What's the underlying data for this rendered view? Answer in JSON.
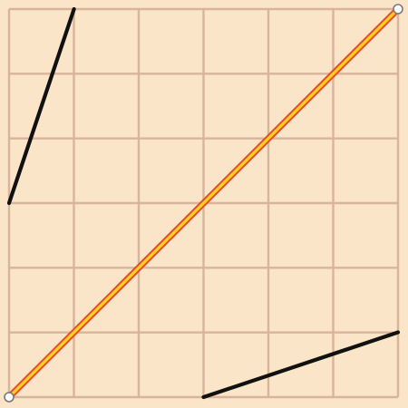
{
  "editor": {
    "grid_divisions": 6,
    "grid": true,
    "colors": {
      "background": "#fae5c8",
      "grid": "#d8b59a",
      "segment": "#111111",
      "curve_outline": "#e64b2e",
      "curve_fill": "#ffd21f",
      "handle_fill": "#ffffff",
      "handle_stroke": "#7a7a7a"
    }
  },
  "curve": {
    "start": {
      "x": 0,
      "y": 0
    },
    "end": {
      "x": 1,
      "y": 1
    }
  },
  "handles": {
    "start": {
      "x": 0,
      "y": 0
    },
    "end": {
      "x": 1,
      "y": 1
    }
  },
  "segments": {
    "upper_left": {
      "from": {
        "x": 0,
        "y": 0.5
      },
      "to": {
        "x": 0.167,
        "y": 1
      }
    },
    "lower_right": {
      "from": {
        "x": 0.5,
        "y": 0
      },
      "to": {
        "x": 1,
        "y": 0.167
      }
    }
  }
}
